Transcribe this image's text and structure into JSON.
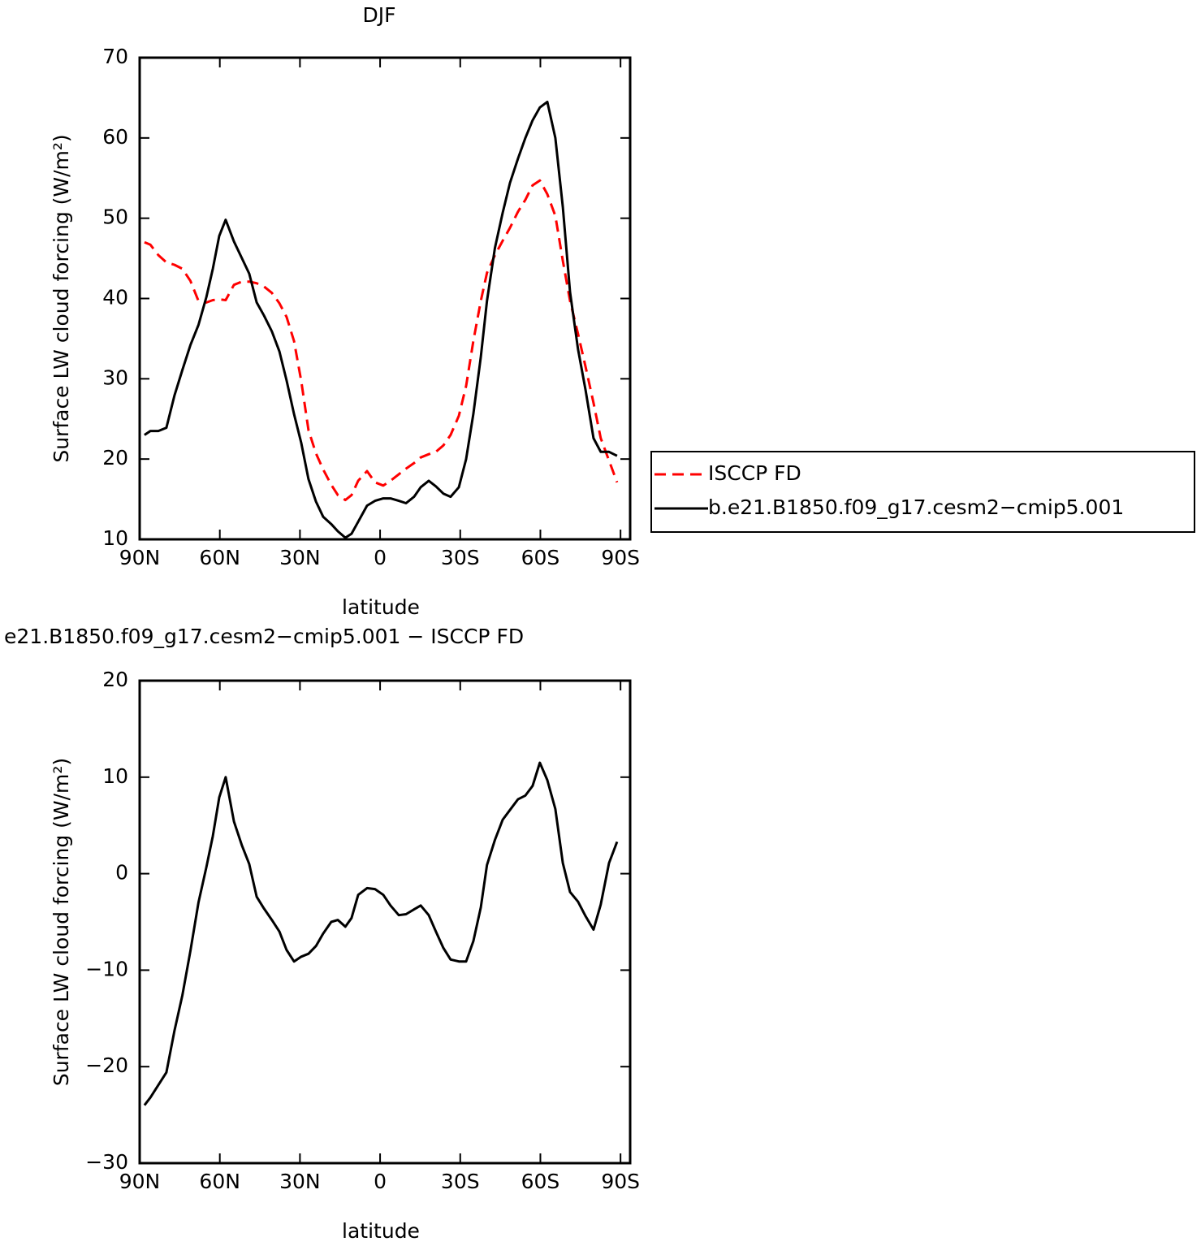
{
  "chart_data": [
    {
      "type": "line",
      "title": "DJF",
      "xlabel": "latitude",
      "ylabel": "Surface LW cloud forcing (W/m²)",
      "x": [
        88.2,
        86,
        83,
        80,
        77,
        74,
        71,
        68,
        65,
        62.6,
        60.2,
        57.8,
        54.7,
        51.7,
        49,
        46.2,
        43.5,
        40.5,
        37.7,
        35,
        32.2,
        29.5,
        26.8,
        24,
        21.3,
        18.3,
        15.8,
        13,
        10.7,
        8.2,
        4.9,
        1.9,
        -1.2,
        -3.9,
        -7,
        -9.7,
        -12.7,
        -15.2,
        -18.2,
        -20.9,
        -23.7,
        -26.4,
        -29.5,
        -32.2,
        -34.9,
        -37.7,
        -40,
        -43,
        -45.9,
        -48.6,
        -51.6,
        -54.4,
        -57.1,
        -59.8,
        -62.6,
        -65.6,
        -68.4,
        -71.1,
        -74.1,
        -76.9,
        -79.9,
        -82.6,
        -85.7,
        -88.7
      ],
      "series": [
        {
          "name": "ISCCP FD",
          "color": "#ff0000",
          "dashed": true,
          "values": [
            47.0,
            46.7,
            45.4,
            44.5,
            44.2,
            43.7,
            42.2,
            39.7,
            39.5,
            39.8,
            39.9,
            39.8,
            41.7,
            42.1,
            42.1,
            41.9,
            41.5,
            40.7,
            39.4,
            37.7,
            34.7,
            29.7,
            23.6,
            20.7,
            18.7,
            16.8,
            15.5,
            14.9,
            15.5,
            17.3,
            18.5,
            17.1,
            16.7,
            17.3,
            18.1,
            18.8,
            19.5,
            20.2,
            20.6,
            20.9,
            21.7,
            23.0,
            25.4,
            29.1,
            34.7,
            39.7,
            43.2,
            45.4,
            47.2,
            48.8,
            50.8,
            52.3,
            54.1,
            54.7,
            53.0,
            50.3,
            44.7,
            39.7,
            35.6,
            31.5,
            27.0,
            22.6,
            19.8,
            17.1
          ]
        },
        {
          "name": "b.e21.B1850.f09_g17.cesm2−cmip5.001",
          "color": "#000000",
          "dashed": false,
          "values": [
            23.0,
            23.5,
            23.5,
            23.9,
            27.9,
            31.1,
            34.2,
            36.7,
            40.2,
            43.7,
            47.8,
            49.8,
            47.1,
            45.0,
            43.1,
            39.5,
            37.9,
            35.9,
            33.4,
            29.8,
            25.6,
            22.0,
            17.5,
            14.7,
            12.8,
            11.9,
            11.0,
            10.2,
            10.7,
            12.2,
            14.2,
            14.8,
            15.1,
            15.1,
            14.8,
            14.5,
            15.3,
            16.5,
            17.3,
            16.6,
            15.7,
            15.3,
            16.5,
            20.0,
            25.6,
            32.7,
            39.7,
            46.3,
            50.7,
            54.4,
            57.4,
            60.0,
            62.2,
            63.8,
            64.5,
            60.0,
            51.4,
            40.8,
            33.7,
            28.6,
            22.6,
            20.9,
            20.9,
            20.4
          ]
        }
      ],
      "legend": "right",
      "xlim": [
        90,
        -93.6
      ],
      "xticks": [
        {
          "value": 90,
          "label": "90N"
        },
        {
          "value": 60,
          "label": "60N"
        },
        {
          "value": 30,
          "label": "30N"
        },
        0,
        {
          "value": -30,
          "label": "30S"
        },
        {
          "value": -60,
          "label": "60S"
        },
        {
          "value": -90,
          "label": "90S"
        }
      ],
      "ylim": [
        10,
        70
      ],
      "yticks": [
        10,
        20,
        30,
        40,
        50,
        60,
        70
      ]
    },
    {
      "type": "line",
      "title": "e21.B1850.f09_g17.cesm2−cmip5.001 − ISCCP FD",
      "xlabel": "latitude",
      "ylabel": "Surface LW cloud forcing (W/m²)",
      "x": [
        88.2,
        86,
        83,
        80,
        77,
        74,
        71,
        68,
        65,
        62.6,
        60.2,
        57.8,
        54.7,
        51.7,
        49,
        46.2,
        43.5,
        40.5,
        37.7,
        35,
        32.2,
        29.5,
        26.8,
        24,
        21.3,
        18.3,
        15.8,
        13,
        10.7,
        8.2,
        4.9,
        1.9,
        -1.2,
        -3.9,
        -7,
        -9.7,
        -12.7,
        -15.2,
        -18.2,
        -20.9,
        -23.7,
        -26.4,
        -29.5,
        -32.2,
        -34.9,
        -37.7,
        -40,
        -43,
        -45.9,
        -48.6,
        -51.6,
        -54.4,
        -57.1,
        -59.8,
        -62.6,
        -65.6,
        -68.4,
        -71.1,
        -74.1,
        -76.9,
        -79.9,
        -82.6,
        -85.7,
        -88.7
      ],
      "series": [
        {
          "color": "#000000",
          "dashed": false,
          "values": [
            -24.0,
            -23.2,
            -21.9,
            -20.6,
            -16.3,
            -12.6,
            -8.0,
            -3.0,
            0.7,
            3.9,
            7.9,
            10.0,
            5.4,
            2.9,
            1.0,
            -2.4,
            -3.6,
            -4.8,
            -6.0,
            -7.9,
            -9.1,
            -8.6,
            -8.3,
            -7.5,
            -6.2,
            -5.0,
            -4.8,
            -5.5,
            -4.6,
            -2.2,
            -1.5,
            -1.6,
            -2.2,
            -3.3,
            -4.3,
            -4.2,
            -3.7,
            -3.3,
            -4.3,
            -6.0,
            -7.7,
            -8.9,
            -9.1,
            -9.1,
            -7.0,
            -3.5,
            0.9,
            3.5,
            5.6,
            6.6,
            7.7,
            8.1,
            9.1,
            11.5,
            9.7,
            6.7,
            1.1,
            -1.9,
            -2.9,
            -4.4,
            -5.8,
            -3.2,
            1.1,
            3.3
          ]
        }
      ],
      "xlim": [
        90,
        -93.6
      ],
      "xticks": [
        {
          "value": 90,
          "label": "90N"
        },
        {
          "value": 60,
          "label": "60N"
        },
        {
          "value": 30,
          "label": "30N"
        },
        0,
        {
          "value": -30,
          "label": "30S"
        },
        {
          "value": -60,
          "label": "60S"
        },
        {
          "value": -90,
          "label": "90S"
        }
      ],
      "ylim": [
        -30,
        20
      ],
      "yticks": [
        {
          "value": -30,
          "label": "−30"
        },
        {
          "value": -20,
          "label": "−20"
        },
        {
          "value": -10,
          "label": "−10"
        },
        0,
        10,
        20
      ]
    }
  ]
}
